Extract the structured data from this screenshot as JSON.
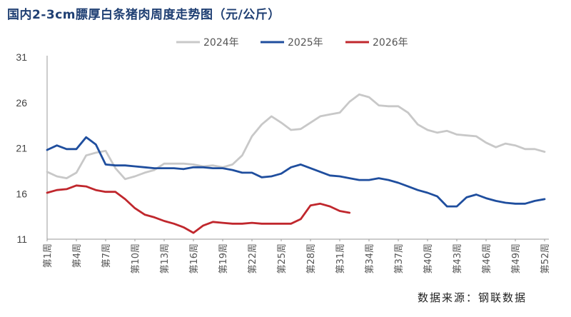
{
  "chart_data": {
    "type": "line",
    "title": "国内2-3cm膘厚白条猪肉周度走势图（元/公斤）",
    "ylim": [
      11,
      31
    ],
    "yticks": [
      "31",
      "26",
      "21",
      "16",
      "11"
    ],
    "xtick_labels": [
      "第1周",
      "第4周",
      "第7周",
      "第10周",
      "第13周",
      "第16周",
      "第19周",
      "第22周",
      "第25周",
      "第28周",
      "第31周",
      "第34周",
      "第37周",
      "第40周",
      "第43周",
      "第46周",
      "第49周",
      "第52周"
    ],
    "legend": "top",
    "grid": false,
    "source": "数据来源：钢联数据",
    "series": [
      {
        "name": "2024年",
        "color": "#c8c8c8",
        "values": [
          18.4,
          17.9,
          17.7,
          18.3,
          20.2,
          20.5,
          20.7,
          18.8,
          17.6,
          17.9,
          18.3,
          18.6,
          19.3,
          19.3,
          19.3,
          19.2,
          19.0,
          19.1,
          18.9,
          19.2,
          20.2,
          22.3,
          23.6,
          24.5,
          23.8,
          23.0,
          23.1,
          23.8,
          24.5,
          24.7,
          24.9,
          26.1,
          26.9,
          26.6,
          25.7,
          25.6,
          25.6,
          24.9,
          23.6,
          23.0,
          22.7,
          22.9,
          22.5,
          22.4,
          22.3,
          21.6,
          21.1,
          21.5,
          21.3,
          20.9,
          20.9,
          20.6
        ]
      },
      {
        "name": "2025年",
        "color": "#1f4e9e",
        "values": [
          20.8,
          21.3,
          20.9,
          20.9,
          22.2,
          21.4,
          19.2,
          19.1,
          19.1,
          19.0,
          18.9,
          18.8,
          18.8,
          18.8,
          18.7,
          18.9,
          18.9,
          18.8,
          18.8,
          18.6,
          18.3,
          18.3,
          17.8,
          17.9,
          18.2,
          18.9,
          19.2,
          18.8,
          18.4,
          18.0,
          17.9,
          17.7,
          17.5,
          17.5,
          17.7,
          17.5,
          17.2,
          16.8,
          16.4,
          16.1,
          15.7,
          14.6,
          14.6,
          15.6,
          15.9,
          15.5,
          15.2,
          15.0,
          14.9,
          14.9,
          15.2,
          15.4
        ]
      },
      {
        "name": "2026年",
        "color": "#c0272d",
        "values": [
          16.1,
          16.4,
          16.5,
          16.9,
          16.8,
          16.4,
          16.2,
          16.2,
          15.4,
          14.4,
          13.7,
          13.4,
          13.0,
          12.7,
          12.3,
          11.7,
          12.5,
          12.9,
          12.8,
          12.7,
          12.7,
          12.8,
          12.7,
          12.7,
          12.7,
          12.7,
          13.2,
          14.7,
          14.9,
          14.6,
          14.1,
          13.9
        ]
      }
    ]
  }
}
